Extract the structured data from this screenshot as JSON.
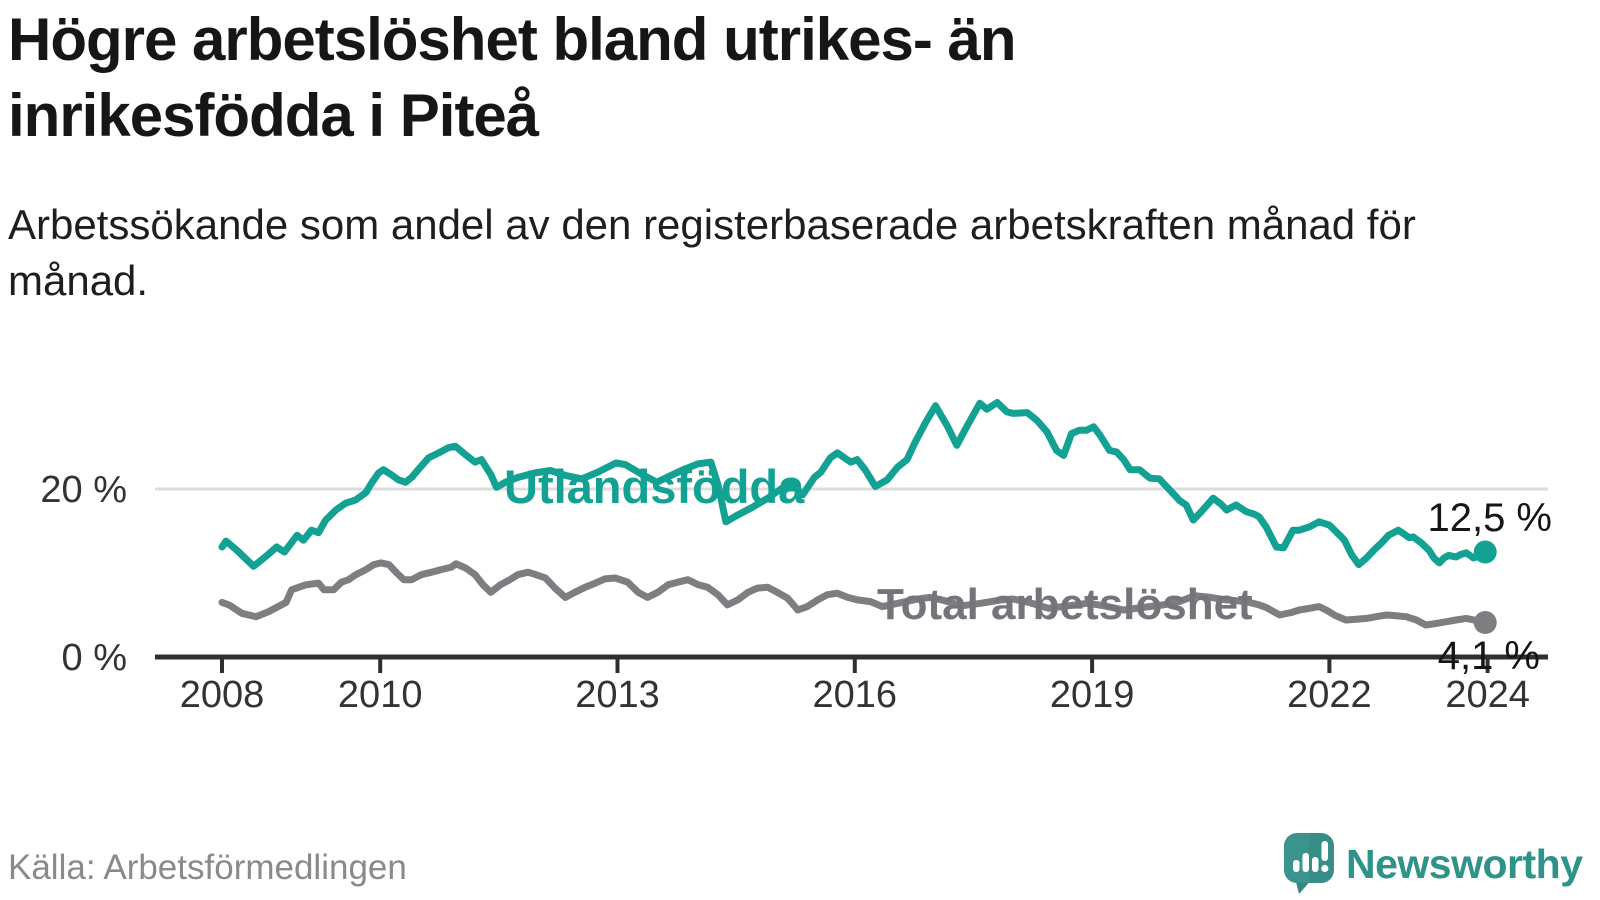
{
  "title": "Högre arbetslöshet bland utrikes- än inrikesfödda i Piteå",
  "subtitle": "Arbetssökande som andel av den registerbaserade arbetskraften månad för månad.",
  "source": "Källa: Arbetsförmedlingen",
  "branding": {
    "name": "Newsworthy",
    "logo_icon": "speech-bubble-bar-chart-exclamation",
    "text_color": "#2e9389",
    "bubble_color": "#3a948d"
  },
  "colors": {
    "foreign_born_line": "#12a192",
    "total_line": "#7e7e82",
    "total_label": "#74747a",
    "axis": "#2f2f2f",
    "tick_label": "#333333",
    "gridline": "#dcdcdc",
    "end_label": "#151515"
  },
  "chart_data": {
    "type": "line",
    "unit": "%",
    "xlabel": "",
    "ylabel": "",
    "grid": "single horizontal gridline at 20 %",
    "legend": "inline labels on lines",
    "x_range": [
      2007.9,
      2025.2
    ],
    "ylim": [
      0,
      33
    ],
    "x_ticks": [
      {
        "value": 2008,
        "label": "2008"
      },
      {
        "value": 2010,
        "label": "2010"
      },
      {
        "value": 2013,
        "label": "2013"
      },
      {
        "value": 2016,
        "label": "2016"
      },
      {
        "value": 2019,
        "label": "2019"
      },
      {
        "value": 2022,
        "label": "2022"
      },
      {
        "value": 2024,
        "label": "2024"
      }
    ],
    "y_ticks": [
      {
        "value": 0,
        "label": "0 %",
        "grid": false
      },
      {
        "value": 20,
        "label": "20 %",
        "grid": true
      }
    ],
    "series": [
      {
        "name": "Utlandsfödda",
        "color": "#12a192",
        "end_value": 12.5,
        "end_label": "12,5 %",
        "points": [
          [
            2008.0,
            13.1
          ],
          [
            2008.05,
            13.8
          ],
          [
            2008.19,
            12.7
          ],
          [
            2008.4,
            10.8
          ],
          [
            2008.57,
            12.1
          ],
          [
            2008.69,
            13.1
          ],
          [
            2008.79,
            12.5
          ],
          [
            2008.95,
            14.5
          ],
          [
            2009.03,
            13.9
          ],
          [
            2009.13,
            15.1
          ],
          [
            2009.22,
            14.8
          ],
          [
            2009.31,
            16.3
          ],
          [
            2009.44,
            17.5
          ],
          [
            2009.56,
            18.3
          ],
          [
            2009.69,
            18.7
          ],
          [
            2009.82,
            19.6
          ],
          [
            2009.89,
            20.7
          ],
          [
            2009.98,
            21.9
          ],
          [
            2010.04,
            22.3
          ],
          [
            2010.14,
            21.7
          ],
          [
            2010.23,
            21.1
          ],
          [
            2010.32,
            20.8
          ],
          [
            2010.4,
            21.4
          ],
          [
            2010.48,
            22.3
          ],
          [
            2010.61,
            23.7
          ],
          [
            2010.74,
            24.3
          ],
          [
            2010.86,
            24.9
          ],
          [
            2010.95,
            25.1
          ],
          [
            2011.09,
            24.0
          ],
          [
            2011.2,
            23.2
          ],
          [
            2011.28,
            23.5
          ],
          [
            2011.4,
            21.7
          ],
          [
            2011.47,
            20.2
          ],
          [
            2011.58,
            20.8
          ],
          [
            2011.75,
            21.4
          ],
          [
            2011.95,
            21.9
          ],
          [
            2012.15,
            22.2
          ],
          [
            2012.35,
            21.6
          ],
          [
            2012.55,
            21.2
          ],
          [
            2012.75,
            22.0
          ],
          [
            2012.98,
            23.1
          ],
          [
            2013.1,
            22.9
          ],
          [
            2013.3,
            21.8
          ],
          [
            2013.5,
            20.8
          ],
          [
            2013.65,
            21.5
          ],
          [
            2013.83,
            22.3
          ],
          [
            2014.02,
            23.0
          ],
          [
            2014.18,
            23.2
          ],
          [
            2014.27,
            20.5
          ],
          [
            2014.37,
            16.1
          ],
          [
            2014.5,
            16.8
          ],
          [
            2014.7,
            17.8
          ],
          [
            2014.9,
            18.9
          ],
          [
            2015.05,
            19.9
          ],
          [
            2015.19,
            20.7
          ],
          [
            2015.34,
            19.3
          ],
          [
            2015.49,
            21.4
          ],
          [
            2015.57,
            22.0
          ],
          [
            2015.69,
            23.7
          ],
          [
            2015.78,
            24.3
          ],
          [
            2015.87,
            23.7
          ],
          [
            2015.95,
            23.2
          ],
          [
            2016.03,
            23.5
          ],
          [
            2016.13,
            22.3
          ],
          [
            2016.26,
            20.3
          ],
          [
            2016.41,
            21.1
          ],
          [
            2016.54,
            22.6
          ],
          [
            2016.66,
            23.5
          ],
          [
            2016.76,
            25.5
          ],
          [
            2016.9,
            28.0
          ],
          [
            2017.02,
            29.9
          ],
          [
            2017.17,
            27.5
          ],
          [
            2017.29,
            25.2
          ],
          [
            2017.42,
            27.5
          ],
          [
            2017.58,
            30.2
          ],
          [
            2017.67,
            29.5
          ],
          [
            2017.8,
            30.3
          ],
          [
            2017.92,
            29.2
          ],
          [
            2018.0,
            29.0
          ],
          [
            2018.18,
            29.1
          ],
          [
            2018.3,
            28.2
          ],
          [
            2018.43,
            26.8
          ],
          [
            2018.55,
            24.6
          ],
          [
            2018.64,
            24.0
          ],
          [
            2018.74,
            26.6
          ],
          [
            2018.84,
            27.0
          ],
          [
            2018.93,
            27.0
          ],
          [
            2019.02,
            27.4
          ],
          [
            2019.1,
            26.4
          ],
          [
            2019.22,
            24.6
          ],
          [
            2019.31,
            24.4
          ],
          [
            2019.4,
            23.5
          ],
          [
            2019.48,
            22.3
          ],
          [
            2019.6,
            22.3
          ],
          [
            2019.73,
            21.3
          ],
          [
            2019.85,
            21.2
          ],
          [
            2019.98,
            19.9
          ],
          [
            2020.11,
            18.6
          ],
          [
            2020.19,
            18.1
          ],
          [
            2020.28,
            16.3
          ],
          [
            2020.4,
            17.5
          ],
          [
            2020.53,
            18.9
          ],
          [
            2020.63,
            18.2
          ],
          [
            2020.7,
            17.5
          ],
          [
            2020.82,
            18.1
          ],
          [
            2020.95,
            17.3
          ],
          [
            2021.05,
            17.0
          ],
          [
            2021.11,
            16.7
          ],
          [
            2021.2,
            15.5
          ],
          [
            2021.33,
            13.1
          ],
          [
            2021.42,
            13.0
          ],
          [
            2021.54,
            15.1
          ],
          [
            2021.62,
            15.1
          ],
          [
            2021.75,
            15.5
          ],
          [
            2021.87,
            16.1
          ],
          [
            2022.0,
            15.7
          ],
          [
            2022.13,
            14.5
          ],
          [
            2022.19,
            13.9
          ],
          [
            2022.28,
            12.2
          ],
          [
            2022.37,
            11.0
          ],
          [
            2022.47,
            11.8
          ],
          [
            2022.56,
            12.7
          ],
          [
            2022.66,
            13.6
          ],
          [
            2022.75,
            14.5
          ],
          [
            2022.87,
            15.1
          ],
          [
            2022.95,
            14.6
          ],
          [
            2023.01,
            14.2
          ],
          [
            2023.06,
            14.3
          ],
          [
            2023.16,
            13.6
          ],
          [
            2023.26,
            12.7
          ],
          [
            2023.32,
            11.8
          ],
          [
            2023.39,
            11.2
          ],
          [
            2023.45,
            11.8
          ],
          [
            2023.51,
            12.1
          ],
          [
            2023.6,
            11.9
          ],
          [
            2023.66,
            12.2
          ],
          [
            2023.73,
            12.4
          ],
          [
            2023.82,
            11.8
          ],
          [
            2023.89,
            12.0
          ],
          [
            2023.97,
            12.5
          ]
        ]
      },
      {
        "name": "Total arbetslöshet",
        "color": "#7e7e82",
        "end_value": 4.1,
        "end_label": "4,1 %",
        "points": [
          [
            2008.0,
            6.5
          ],
          [
            2008.09,
            6.2
          ],
          [
            2008.25,
            5.2
          ],
          [
            2008.43,
            4.8
          ],
          [
            2008.59,
            5.4
          ],
          [
            2008.81,
            6.5
          ],
          [
            2008.88,
            8.0
          ],
          [
            2009.06,
            8.6
          ],
          [
            2009.22,
            8.8
          ],
          [
            2009.29,
            8.0
          ],
          [
            2009.41,
            8.0
          ],
          [
            2009.51,
            8.9
          ],
          [
            2009.6,
            9.2
          ],
          [
            2009.69,
            9.8
          ],
          [
            2009.82,
            10.4
          ],
          [
            2009.92,
            11.0
          ],
          [
            2010.01,
            11.2
          ],
          [
            2010.11,
            11.0
          ],
          [
            2010.21,
            10.0
          ],
          [
            2010.3,
            9.2
          ],
          [
            2010.4,
            9.2
          ],
          [
            2010.52,
            9.8
          ],
          [
            2010.65,
            10.1
          ],
          [
            2010.77,
            10.4
          ],
          [
            2010.9,
            10.7
          ],
          [
            2010.96,
            11.1
          ],
          [
            2011.08,
            10.6
          ],
          [
            2011.2,
            9.8
          ],
          [
            2011.3,
            8.6
          ],
          [
            2011.4,
            7.7
          ],
          [
            2011.52,
            8.6
          ],
          [
            2011.64,
            9.2
          ],
          [
            2011.74,
            9.8
          ],
          [
            2011.87,
            10.1
          ],
          [
            2011.97,
            9.8
          ],
          [
            2012.09,
            9.4
          ],
          [
            2012.21,
            8.2
          ],
          [
            2012.34,
            7.1
          ],
          [
            2012.46,
            7.7
          ],
          [
            2012.59,
            8.3
          ],
          [
            2012.72,
            8.8
          ],
          [
            2012.84,
            9.3
          ],
          [
            2012.97,
            9.4
          ],
          [
            2013.13,
            8.9
          ],
          [
            2013.26,
            7.7
          ],
          [
            2013.38,
            7.1
          ],
          [
            2013.51,
            7.7
          ],
          [
            2013.64,
            8.6
          ],
          [
            2013.76,
            8.9
          ],
          [
            2013.89,
            9.2
          ],
          [
            2014.02,
            8.6
          ],
          [
            2014.14,
            8.3
          ],
          [
            2014.27,
            7.4
          ],
          [
            2014.39,
            6.2
          ],
          [
            2014.52,
            6.8
          ],
          [
            2014.65,
            7.7
          ],
          [
            2014.77,
            8.2
          ],
          [
            2014.9,
            8.3
          ],
          [
            2015.02,
            7.7
          ],
          [
            2015.15,
            7.0
          ],
          [
            2015.28,
            5.6
          ],
          [
            2015.4,
            6.0
          ],
          [
            2015.53,
            6.8
          ],
          [
            2015.65,
            7.4
          ],
          [
            2015.78,
            7.6
          ],
          [
            2015.91,
            7.1
          ],
          [
            2016.03,
            6.8
          ],
          [
            2016.2,
            6.6
          ],
          [
            2016.35,
            6.0
          ],
          [
            2016.55,
            6.4
          ],
          [
            2016.8,
            6.9
          ],
          [
            2016.95,
            7.1
          ],
          [
            2017.1,
            6.8
          ],
          [
            2017.35,
            6.1
          ],
          [
            2017.6,
            6.4
          ],
          [
            2017.85,
            6.8
          ],
          [
            2018.0,
            6.9
          ],
          [
            2018.2,
            6.5
          ],
          [
            2018.45,
            5.8
          ],
          [
            2018.7,
            6.1
          ],
          [
            2018.95,
            6.4
          ],
          [
            2019.15,
            6.1
          ],
          [
            2019.4,
            5.6
          ],
          [
            2019.65,
            5.9
          ],
          [
            2019.9,
            6.2
          ],
          [
            2020.1,
            6.6
          ],
          [
            2020.3,
            7.3
          ],
          [
            2020.5,
            7.1
          ],
          [
            2020.7,
            6.8
          ],
          [
            2020.95,
            6.6
          ],
          [
            2021.11,
            6.2
          ],
          [
            2021.2,
            5.9
          ],
          [
            2021.37,
            5.0
          ],
          [
            2021.52,
            5.3
          ],
          [
            2021.62,
            5.6
          ],
          [
            2021.75,
            5.8
          ],
          [
            2021.87,
            6.0
          ],
          [
            2021.96,
            5.6
          ],
          [
            2022.08,
            4.9
          ],
          [
            2022.21,
            4.4
          ],
          [
            2022.34,
            4.5
          ],
          [
            2022.47,
            4.6
          ],
          [
            2022.59,
            4.8
          ],
          [
            2022.72,
            5.0
          ],
          [
            2022.85,
            4.9
          ],
          [
            2022.97,
            4.8
          ],
          [
            2023.1,
            4.4
          ],
          [
            2023.22,
            3.8
          ],
          [
            2023.35,
            4.0
          ],
          [
            2023.48,
            4.2
          ],
          [
            2023.6,
            4.4
          ],
          [
            2023.73,
            4.6
          ],
          [
            2023.83,
            4.4
          ],
          [
            2023.92,
            3.9
          ],
          [
            2023.97,
            4.1
          ]
        ]
      }
    ]
  }
}
